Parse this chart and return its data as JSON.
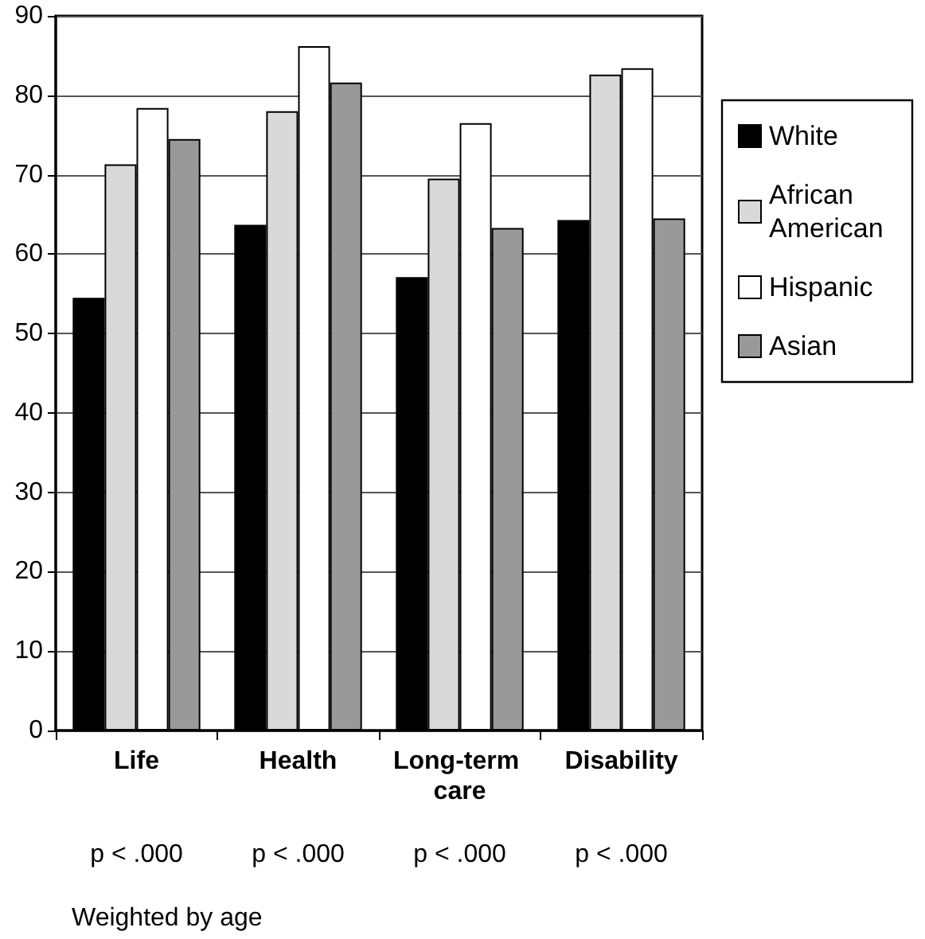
{
  "chart_data": {
    "type": "bar",
    "categories": [
      "Life",
      "Health",
      "Long-term care",
      "Disability"
    ],
    "series": [
      {
        "name": "White",
        "color": "#000000",
        "values": [
          54.5,
          63.7,
          57.1,
          64.3
        ]
      },
      {
        "name": "African American",
        "color": "#d9d9d9",
        "values": [
          71.3,
          78.0,
          69.5,
          82.6
        ]
      },
      {
        "name": "Hispanic",
        "color": "#ffffff",
        "values": [
          78.4,
          86.2,
          76.5,
          83.4
        ]
      },
      {
        "name": "Asian",
        "color": "#999999",
        "values": [
          74.5,
          81.6,
          63.3,
          64.5
        ]
      }
    ],
    "ylim": [
      0,
      90
    ],
    "yticks": [
      0,
      10,
      20,
      30,
      40,
      50,
      60,
      70,
      80,
      90
    ],
    "grid": "y",
    "legend": "right",
    "annotations": [
      "p < .000",
      "p < .000",
      "p < .000",
      "p < .000",
      "Weighted by age"
    ]
  }
}
